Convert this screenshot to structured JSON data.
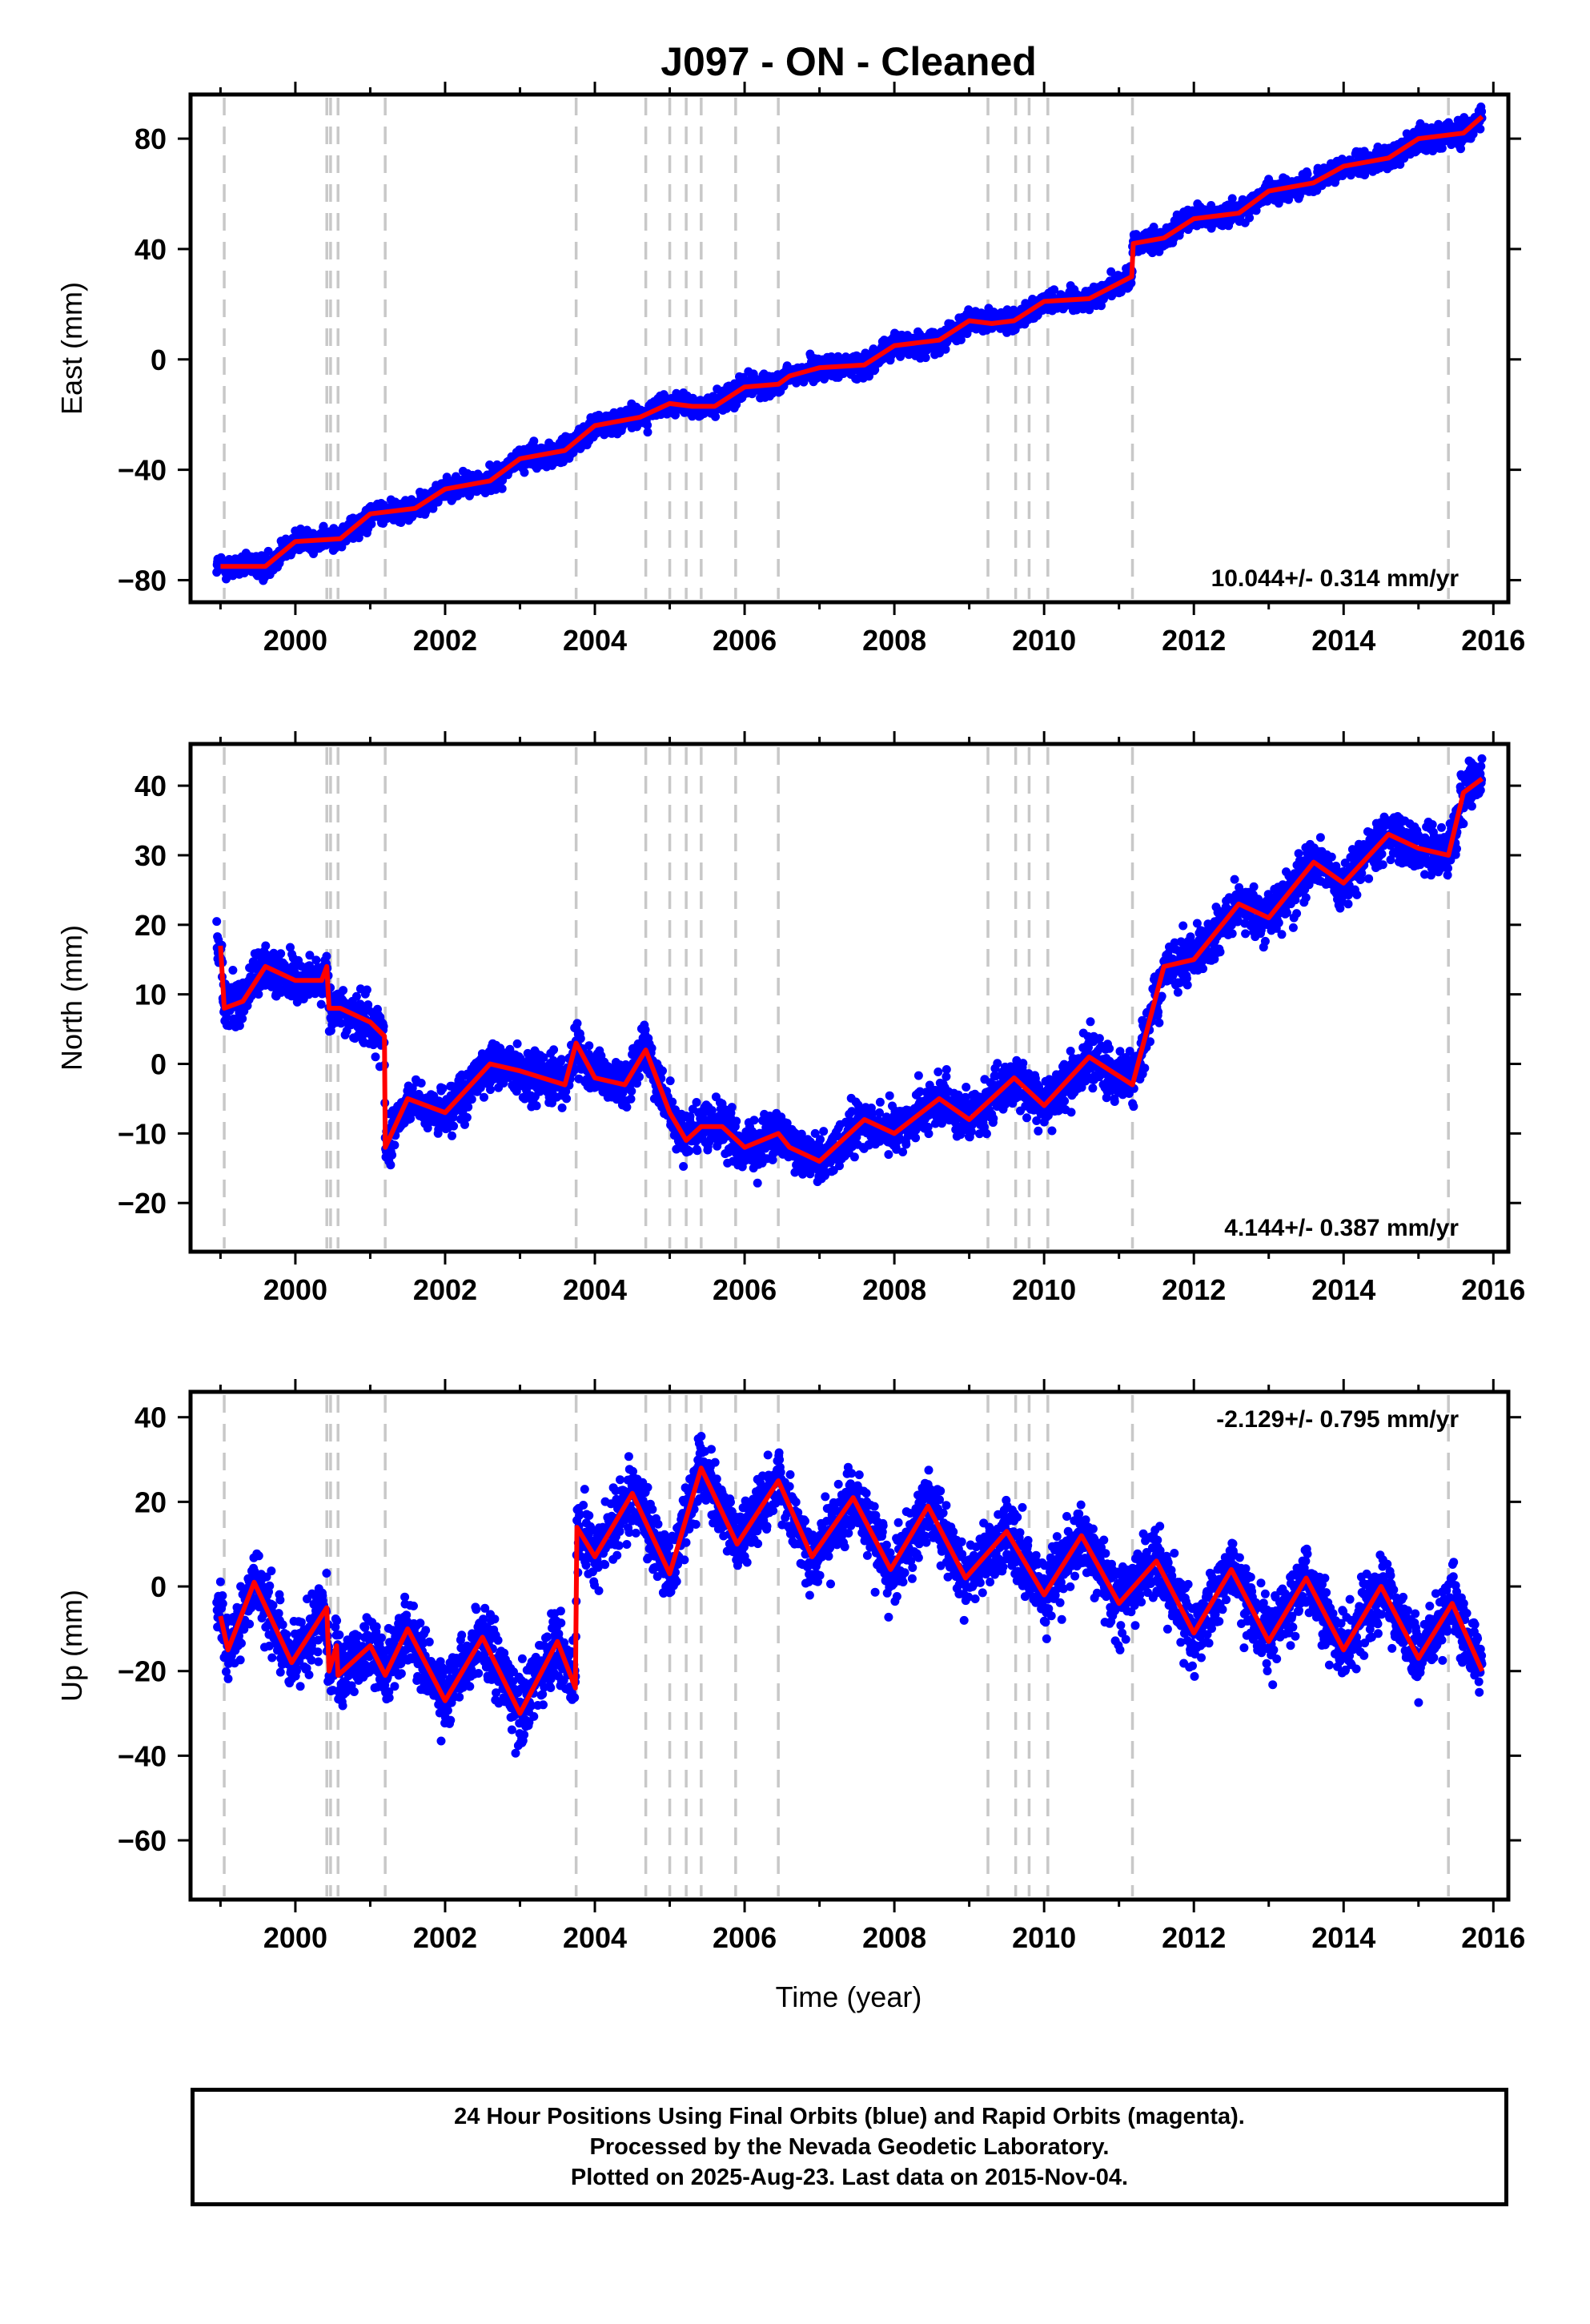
{
  "chart_data": {
    "type": "scatter",
    "title": "J097  - ON - Cleaned",
    "xlabel": "Time (year)",
    "x_ticks": [
      2000,
      2002,
      2004,
      2006,
      2008,
      2010,
      2012,
      2014,
      2016
    ],
    "xlim": [
      1998.6,
      2016.2
    ],
    "step_epochs": [
      1999.05,
      2000.42,
      2000.47,
      2000.57,
      2001.2,
      2003.75,
      2004.68,
      2005.0,
      2005.22,
      2005.42,
      2005.88,
      2006.45,
      2009.25,
      2009.62,
      2009.8,
      2010.05,
      2011.18,
      2015.4
    ],
    "colors": {
      "observations": "#0000ff",
      "model": "#ff0000",
      "steps": "#c8c8c8"
    },
    "panels": [
      {
        "name": "east",
        "ylabel": "East (mm)",
        "ylim": [
          -88,
          96
        ],
        "y_ticks": [
          80,
          40,
          0,
          -40,
          -80
        ],
        "rate_label": "10.044+/- 0.314 mm/yr",
        "rate_position": "bottom-right",
        "model": [
          [
            1999.0,
            -75
          ],
          [
            1999.6,
            -75
          ],
          [
            2000.0,
            -66
          ],
          [
            2000.6,
            -65
          ],
          [
            2001.0,
            -56
          ],
          [
            2001.6,
            -54
          ],
          [
            2002.0,
            -47
          ],
          [
            2002.6,
            -44
          ],
          [
            2003.0,
            -36
          ],
          [
            2003.6,
            -33
          ],
          [
            2004.0,
            -24
          ],
          [
            2004.6,
            -21
          ],
          [
            2005.0,
            -16
          ],
          [
            2005.3,
            -17
          ],
          [
            2005.6,
            -17
          ],
          [
            2006.0,
            -10
          ],
          [
            2006.45,
            -9
          ],
          [
            2006.6,
            -6
          ],
          [
            2007.0,
            -3
          ],
          [
            2007.6,
            -2
          ],
          [
            2008.0,
            5
          ],
          [
            2008.6,
            7
          ],
          [
            2009.0,
            14
          ],
          [
            2009.3,
            13
          ],
          [
            2009.6,
            14
          ],
          [
            2010.0,
            21
          ],
          [
            2010.6,
            22
          ],
          [
            2011.17,
            30
          ],
          [
            2011.19,
            42
          ],
          [
            2011.6,
            44
          ],
          [
            2012.0,
            51
          ],
          [
            2012.6,
            53
          ],
          [
            2013.0,
            61
          ],
          [
            2013.6,
            64
          ],
          [
            2014.0,
            70
          ],
          [
            2014.6,
            73
          ],
          [
            2015.0,
            80
          ],
          [
            2015.6,
            82
          ],
          [
            2015.85,
            88
          ]
        ],
        "scatter_scale": 3.5
      },
      {
        "name": "north",
        "ylabel": "North (mm)",
        "ylim": [
          -27,
          46
        ],
        "y_ticks": [
          40,
          30,
          20,
          10,
          0,
          -10,
          -20
        ],
        "rate_label": "4.144+/- 0.387 mm/yr",
        "rate_position": "bottom-right",
        "model": [
          [
            1999.0,
            17
          ],
          [
            1999.05,
            8
          ],
          [
            1999.3,
            9
          ],
          [
            1999.6,
            14
          ],
          [
            2000.0,
            12
          ],
          [
            2000.35,
            12
          ],
          [
            2000.42,
            14
          ],
          [
            2000.45,
            8
          ],
          [
            2000.6,
            8
          ],
          [
            2001.0,
            6
          ],
          [
            2001.19,
            4
          ],
          [
            2001.2,
            -12
          ],
          [
            2001.5,
            -5
          ],
          [
            2002.0,
            -7
          ],
          [
            2002.6,
            0
          ],
          [
            2003.0,
            -1
          ],
          [
            2003.6,
            -3
          ],
          [
            2003.75,
            3
          ],
          [
            2004.0,
            -2
          ],
          [
            2004.4,
            -3
          ],
          [
            2004.68,
            2
          ],
          [
            2005.0,
            -7
          ],
          [
            2005.22,
            -11
          ],
          [
            2005.42,
            -9
          ],
          [
            2005.7,
            -9
          ],
          [
            2006.0,
            -12
          ],
          [
            2006.45,
            -10
          ],
          [
            2006.6,
            -12
          ],
          [
            2007.0,
            -14
          ],
          [
            2007.6,
            -8
          ],
          [
            2008.0,
            -10
          ],
          [
            2008.6,
            -5
          ],
          [
            2009.0,
            -8
          ],
          [
            2009.6,
            -2
          ],
          [
            2010.0,
            -6
          ],
          [
            2010.6,
            1
          ],
          [
            2011.18,
            -3
          ],
          [
            2011.6,
            14
          ],
          [
            2012.0,
            15
          ],
          [
            2012.6,
            23
          ],
          [
            2013.0,
            21
          ],
          [
            2013.6,
            29
          ],
          [
            2014.0,
            26
          ],
          [
            2014.6,
            33
          ],
          [
            2015.0,
            31
          ],
          [
            2015.4,
            30
          ],
          [
            2015.6,
            39
          ],
          [
            2015.85,
            41
          ]
        ],
        "scatter_scale": 3.0
      },
      {
        "name": "up",
        "ylabel": "Up (mm)",
        "ylim": [
          -74,
          46
        ],
        "y_ticks": [
          40,
          20,
          0,
          -20,
          -40,
          -60
        ],
        "rate_label": "-2.129+/- 0.795 mm/yr",
        "rate_position": "top-right",
        "model": [
          [
            1999.0,
            -7
          ],
          [
            1999.1,
            -15
          ],
          [
            1999.45,
            1
          ],
          [
            1999.95,
            -18
          ],
          [
            2000.42,
            -5
          ],
          [
            2000.45,
            -20
          ],
          [
            2000.55,
            -14
          ],
          [
            2000.57,
            -21
          ],
          [
            2001.0,
            -14
          ],
          [
            2001.2,
            -21
          ],
          [
            2001.5,
            -10
          ],
          [
            2002.0,
            -27
          ],
          [
            2002.5,
            -12
          ],
          [
            2003.0,
            -30
          ],
          [
            2003.5,
            -13
          ],
          [
            2003.74,
            -24
          ],
          [
            2003.76,
            14
          ],
          [
            2004.0,
            7
          ],
          [
            2004.5,
            22
          ],
          [
            2005.0,
            3
          ],
          [
            2005.42,
            28
          ],
          [
            2005.9,
            10
          ],
          [
            2006.45,
            25
          ],
          [
            2006.9,
            7
          ],
          [
            2007.45,
            21
          ],
          [
            2007.95,
            4
          ],
          [
            2008.45,
            19
          ],
          [
            2008.95,
            2
          ],
          [
            2009.5,
            13
          ],
          [
            2010.0,
            -2
          ],
          [
            2010.5,
            12
          ],
          [
            2011.0,
            -4
          ],
          [
            2011.5,
            6
          ],
          [
            2012.0,
            -11
          ],
          [
            2012.5,
            4
          ],
          [
            2013.0,
            -13
          ],
          [
            2013.5,
            2
          ],
          [
            2014.0,
            -15
          ],
          [
            2014.5,
            0
          ],
          [
            2015.0,
            -17
          ],
          [
            2015.45,
            -4
          ],
          [
            2015.85,
            -20
          ]
        ],
        "scatter_scale": 7.0
      }
    ]
  },
  "footer": {
    "line1": "24 Hour Positions Using Final Orbits (blue) and Rapid Orbits (magenta).",
    "line2": "Processed by the Nevada Geodetic Laboratory.",
    "line3": "Plotted on 2025-Aug-23. Last data on 2015-Nov-04."
  }
}
